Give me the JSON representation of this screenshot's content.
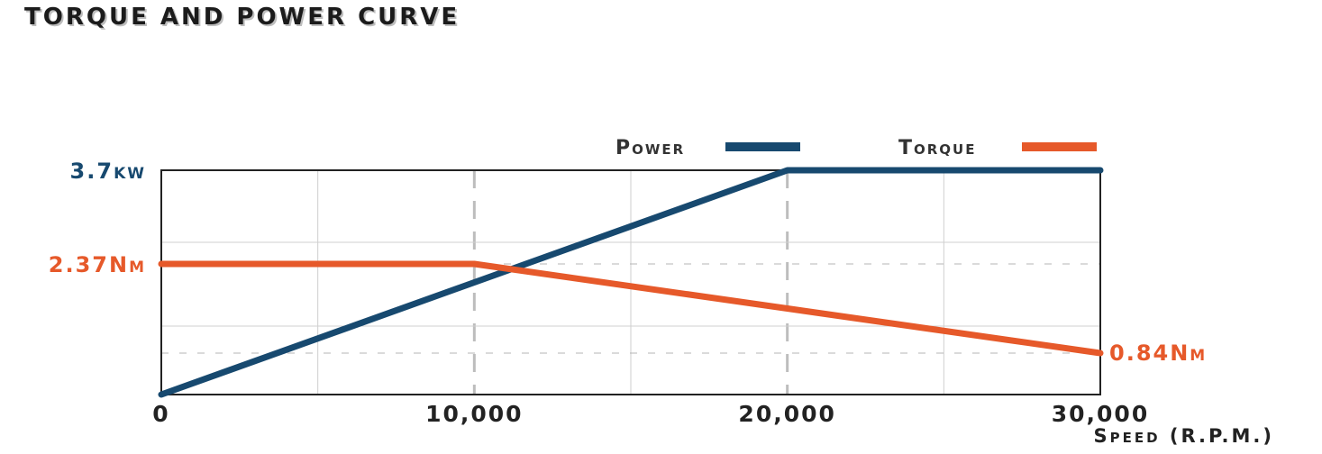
{
  "chart_data": {
    "type": "line",
    "title": "TORQUE AND POWER CURVE",
    "xlabel": "Speed (R.P.M.)",
    "x_ticks": [
      "0",
      "10,000",
      "20,000",
      "30,000"
    ],
    "xlim": [
      0,
      30000
    ],
    "colors": {
      "power": "#17496f",
      "torque": "#e6592a"
    },
    "legend_position": "top-right",
    "grid": true,
    "series": [
      {
        "name": "Power",
        "axis": "left-upper",
        "points": [
          [
            0,
            0
          ],
          [
            20000,
            3.7
          ],
          [
            30000,
            3.7
          ]
        ]
      },
      {
        "name": "Torque",
        "axis": "left-lower",
        "points": [
          [
            0,
            2.37
          ],
          [
            10000,
            2.37
          ],
          [
            30000,
            0.84
          ]
        ]
      }
    ],
    "annotations": {
      "power_max": "3.7kw",
      "torque_max": "2.37Nm",
      "torque_end": "0.84Nm"
    }
  }
}
